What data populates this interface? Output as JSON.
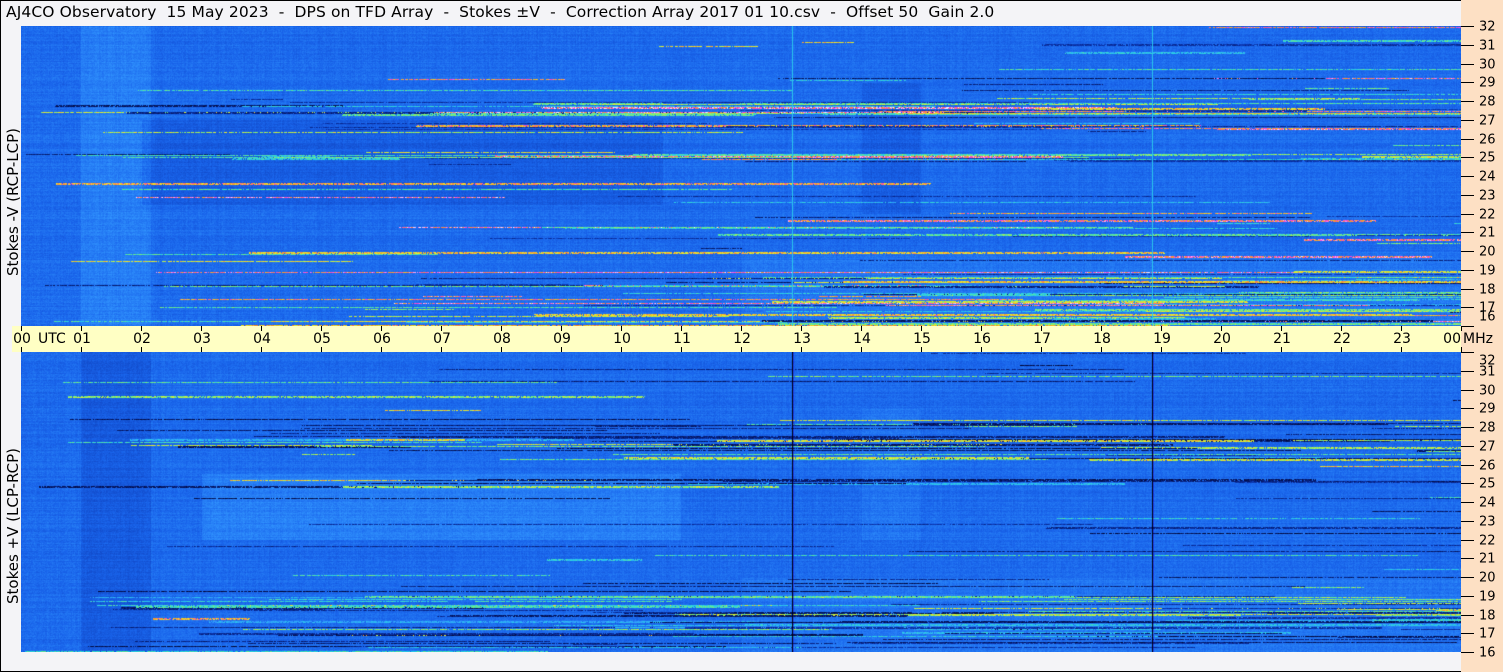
{
  "title": "AJ4CO Observatory  15 May 2023  -  DPS on TFD Array  -  Stokes ±V  -  Correction Array 2017 01 10.csv  -  Offset 50  Gain 2.0",
  "colors": {
    "title_bg": "#f4f4f7",
    "time_axis_bg": "#ffffc4",
    "freq_axis_bg": "#fde0c4",
    "spectrogram_base": "#1e6ceb"
  },
  "chart_data": {
    "type": "heatmap",
    "title": "AJ4CO Observatory  15 May 2023  -  DPS on TFD Array  -  Stokes ±V  -  Correction Array 2017 01 10.csv  -  Offset 50  Gain 2.0",
    "x_axis": {
      "unit_left": "UTC",
      "range_hours": [
        0,
        24
      ],
      "tick_labels": [
        "00",
        "01",
        "02",
        "03",
        "04",
        "05",
        "06",
        "07",
        "08",
        "09",
        "10",
        "11",
        "12",
        "13",
        "14",
        "15",
        "16",
        "17",
        "18",
        "19",
        "20",
        "21",
        "22",
        "23",
        "00"
      ]
    },
    "y_axis": {
      "unit": "MHz",
      "range": [
        16,
        32
      ],
      "tick_labels": [
        "32",
        "31",
        "30",
        "29",
        "28",
        "27",
        "26",
        "25",
        "24",
        "23",
        "22",
        "21",
        "20",
        "19",
        "18",
        "17",
        "16"
      ]
    },
    "panels": [
      {
        "name": "Stokes -V (RCP-LCP)",
        "vertical_features_utc": [
          12.85,
          18.85
        ],
        "feature_color": "cyan"
      },
      {
        "name": "Stokes +V (LCP-RCP)",
        "vertical_features_utc": [
          12.85,
          18.85
        ],
        "feature_color": "black"
      }
    ],
    "colormap": [
      "#000028",
      "#0a32aa",
      "#1964eb",
      "#3296ff",
      "#28d2e6",
      "#78f078",
      "#f0f028",
      "#ff9628",
      "#ff3cdc",
      "#ffffff"
    ],
    "grid": false
  }
}
